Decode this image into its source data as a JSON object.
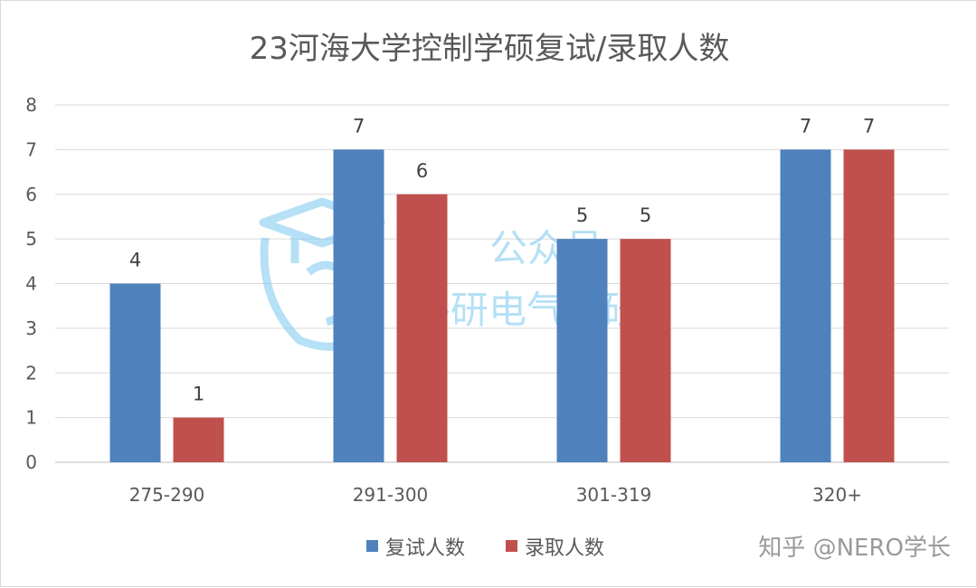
{
  "chart_data": {
    "type": "bar",
    "title": "23河海大学控制学硕复试/录取人数",
    "categories": [
      "275-290",
      "291-300",
      "301-319",
      "320+"
    ],
    "series": [
      {
        "name": "复试人数",
        "values": [
          4,
          7,
          5,
          7
        ],
        "color": "#4f81bd"
      },
      {
        "name": "录取人数",
        "values": [
          1,
          6,
          5,
          7
        ],
        "color": "#c0504d"
      }
    ],
    "ylim": [
      0,
      8
    ],
    "yticks": [
      0,
      1,
      2,
      3,
      4,
      5,
      6,
      7,
      8
    ],
    "grid": true,
    "legend": "bottom"
  },
  "watermark": {
    "line1": "公众号",
    "line2": "路研电气考研",
    "icon": "graduation-cap-logo-icon"
  },
  "credit": "知乎 @NERO学长"
}
